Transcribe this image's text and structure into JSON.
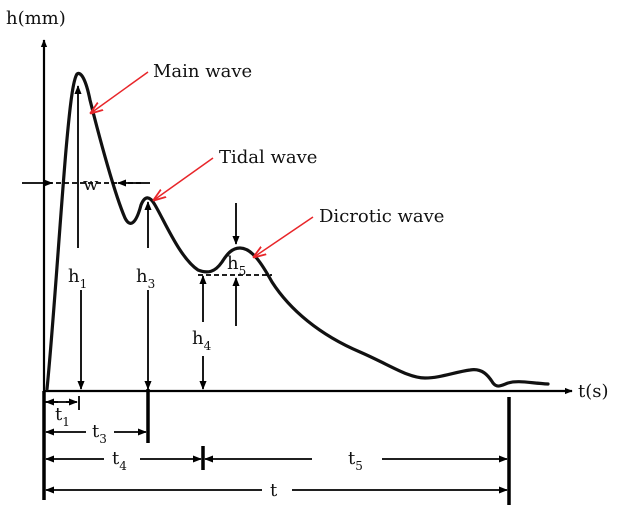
{
  "axes": {
    "y_label": "h(mm)",
    "x_label": "t(s)"
  },
  "annotations": {
    "main_wave": "Main wave",
    "tidal_wave": "Tidal wave",
    "dicrotic_wave": "Dicrotic wave",
    "w": "w"
  },
  "heights": {
    "h1": {
      "base": "h",
      "sub": "1"
    },
    "h3": {
      "base": "h",
      "sub": "3"
    },
    "h4": {
      "base": "h",
      "sub": "4"
    },
    "h5": {
      "base": "h",
      "sub": "5"
    }
  },
  "times": {
    "t1": {
      "base": "t",
      "sub": "1"
    },
    "t3": {
      "base": "t",
      "sub": "3"
    },
    "t4": {
      "base": "t",
      "sub": "4"
    },
    "t5": {
      "base": "t",
      "sub": "5"
    },
    "t": "t"
  },
  "colors": {
    "curve": "#111111",
    "callout": "#e8262a"
  }
}
